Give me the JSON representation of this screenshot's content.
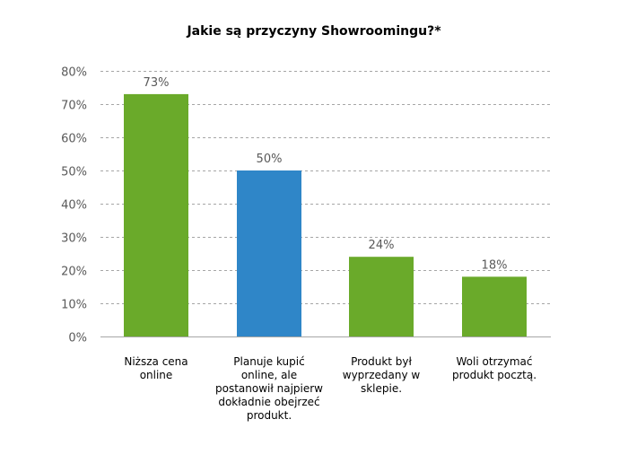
{
  "chart_data": {
    "type": "bar",
    "title": "Jakie są przyczyny Showroomingu?*",
    "xlabel": "",
    "ylabel": "",
    "categories": [
      "Niższa cena online",
      "Planuje kupić online, ale postanowił najpierw dokładnie obejrzeć produkt.",
      "Produkt był wyprzedany w sklepie.",
      "Woli otrzymać produkt pocztą."
    ],
    "category_lines": [
      [
        "Niższa cena",
        "online"
      ],
      [
        "Planuje kupić",
        "online, ale",
        "postanowił najpierw",
        "dokładnie obejrzeć",
        "produkt."
      ],
      [
        "Produkt był",
        "wyprzedany w",
        "sklepie."
      ],
      [
        "Woli otrzymać",
        "produkt pocztą."
      ]
    ],
    "values": [
      73,
      50,
      24,
      18
    ],
    "data_labels": [
      "73%",
      "50%",
      "24%",
      "18%"
    ],
    "bar_colors": [
      "#6aaa2a",
      "#2f86c8",
      "#6aaa2a",
      "#6aaa2a"
    ],
    "ylim": [
      0,
      80
    ],
    "yticks": [
      0,
      10,
      20,
      30,
      40,
      50,
      60,
      70,
      80
    ],
    "ytick_labels": [
      "0%",
      "10%",
      "20%",
      "30%",
      "40%",
      "50%",
      "60%",
      "70%",
      "80%"
    ],
    "grid": true,
    "grid_color": "#a6a6a6",
    "legend": "none"
  }
}
